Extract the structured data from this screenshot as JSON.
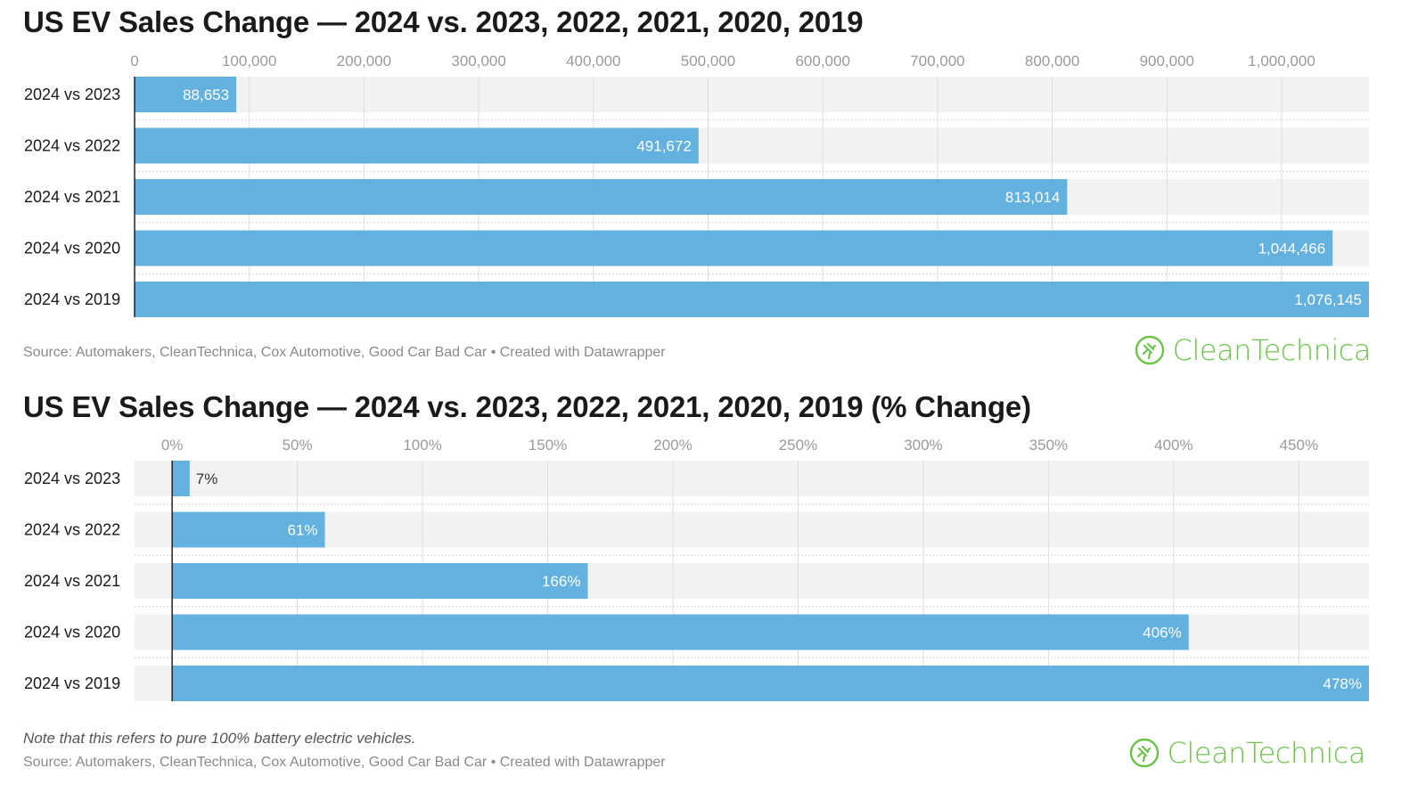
{
  "chart_data": [
    {
      "type": "bar",
      "orientation": "horizontal",
      "title": "US EV Sales Change — 2024 vs. 2023, 2022, 2021, 2020, 2019",
      "categories": [
        "2024 vs 2023",
        "2024 vs 2022",
        "2024 vs 2021",
        "2024 vs 2020",
        "2024 vs 2019"
      ],
      "values": [
        88653,
        491672,
        813014,
        1044466,
        1076145
      ],
      "value_labels": [
        "88,653",
        "491,672",
        "813,014",
        "1,044,466",
        "1,076,145"
      ],
      "ticks": [
        0,
        100000,
        200000,
        300000,
        400000,
        500000,
        600000,
        700000,
        800000,
        900000,
        1000000
      ],
      "tick_labels": [
        "0",
        "100,000",
        "200,000",
        "300,000",
        "400,000",
        "500,000",
        "600,000",
        "700,000",
        "800,000",
        "900,000",
        "1,000,000"
      ],
      "xlim": [
        0,
        1076145
      ],
      "grid": true,
      "source": "Source: Automakers, CleanTechnica, Cox Automotive, Good Car Bad Car • Created with Datawrapper"
    },
    {
      "type": "bar",
      "orientation": "horizontal",
      "title": "US EV Sales Change — 2024 vs. 2023, 2022, 2021, 2020, 2019 (% Change)",
      "categories": [
        "2024 vs 2023",
        "2024 vs 2022",
        "2024 vs 2021",
        "2024 vs 2020",
        "2024 vs 2019"
      ],
      "values": [
        7,
        61,
        166,
        406,
        478
      ],
      "value_labels": [
        "7%",
        "61%",
        "166%",
        "406%",
        "478%"
      ],
      "ticks": [
        0,
        50,
        100,
        150,
        200,
        250,
        300,
        350,
        400,
        450
      ],
      "tick_labels": [
        "0%",
        "50%",
        "100%",
        "150%",
        "200%",
        "250%",
        "300%",
        "350%",
        "400%",
        "450%"
      ],
      "xlim": [
        -15,
        478
      ],
      "grid": true,
      "note": "Note that this refers to pure 100% battery electric vehicles.",
      "source": "Source: Automakers, CleanTechnica, Cox Automotive, Good Car Bad Car • Created with Datawrapper"
    }
  ],
  "brand": {
    "logo_text": "CleanTechnica",
    "logo_color": "#6cc24a"
  },
  "colors": {
    "bar": "#62b1de",
    "track": "#f2f2f2",
    "grid": "#dddddd",
    "axis": "#222222",
    "value_inside": "#ffffff",
    "value_outside": "#333333"
  }
}
